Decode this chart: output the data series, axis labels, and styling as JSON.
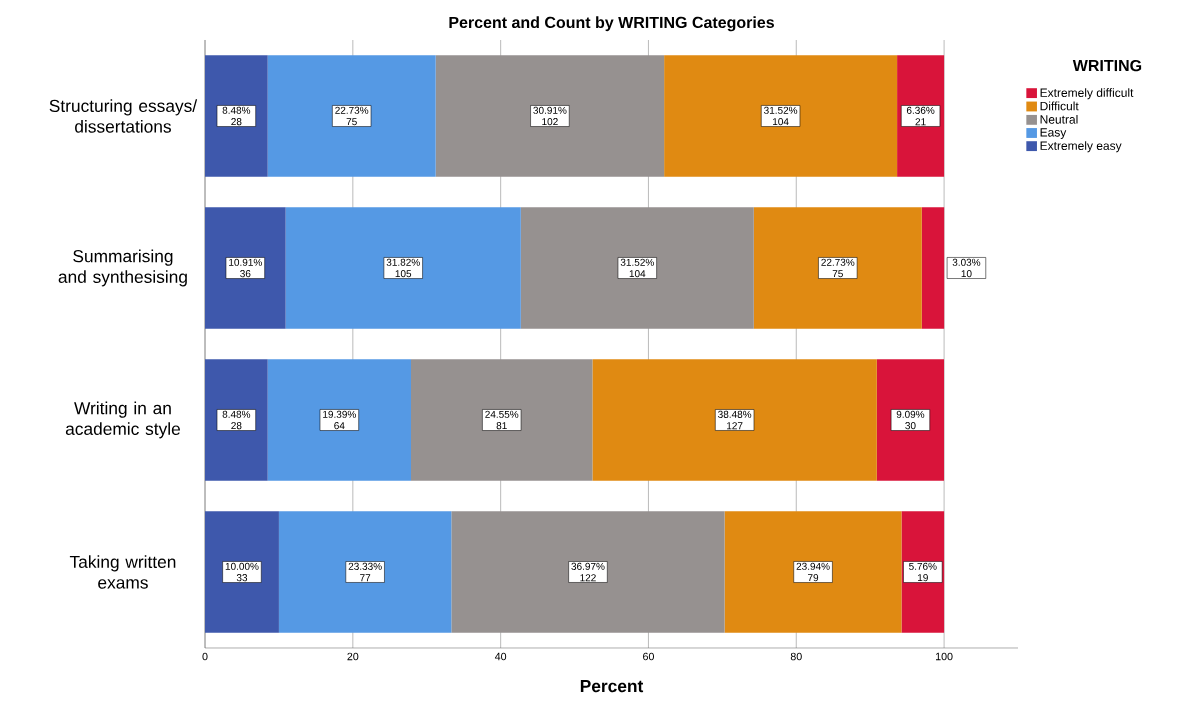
{
  "chart_data": {
    "type": "bar",
    "orientation": "horizontal",
    "stacked": true,
    "title": "Percent and Count by WRITING Categories",
    "xlabel": "Percent",
    "legend_title": "WRITING",
    "categories": [
      "Structuring essays/ dissertations",
      "Summarising and synthesising",
      "Writing in an academic style",
      "Taking written exams"
    ],
    "series": [
      {
        "name": "Extremely easy",
        "color": "#3e58ac",
        "values": [
          8.48,
          10.91,
          8.48,
          10.0
        ],
        "value_labels": [
          "8.48% 28",
          "10.91% 36",
          "8.48% 28",
          "10.00% 33"
        ]
      },
      {
        "name": "Easy",
        "color": "#5599e4",
        "values": [
          22.73,
          31.82,
          19.39,
          23.33
        ],
        "value_labels": [
          "22.73% 75",
          "31.82% 105",
          "19.39% 64",
          "23.33% 77"
        ]
      },
      {
        "name": "Neutral",
        "color": "#969190",
        "values": [
          30.91,
          31.52,
          24.55,
          36.97
        ],
        "value_labels": [
          "30.91% 102",
          "31.52% 104",
          "24.55% 81",
          "36.97% 122"
        ]
      },
      {
        "name": "Difficult",
        "color": "#e08a12",
        "values": [
          31.52,
          22.73,
          38.48,
          23.94
        ],
        "value_labels": [
          "31.52% 104",
          "22.73% 75",
          "38.48% 127",
          "23.94% 79"
        ]
      },
      {
        "name": "Extremely difficult",
        "color": "#d9143a",
        "values": [
          6.36,
          3.03,
          9.09,
          5.76
        ],
        "value_labels": [
          "6.36% 21",
          "3.03% 10",
          "9.09% 30",
          "5.76% 19"
        ]
      }
    ],
    "xlim": [
      0,
      110
    ],
    "xticks": [
      0,
      20,
      40,
      60,
      80,
      100
    ],
    "grid": "x",
    "legend": "top right"
  }
}
